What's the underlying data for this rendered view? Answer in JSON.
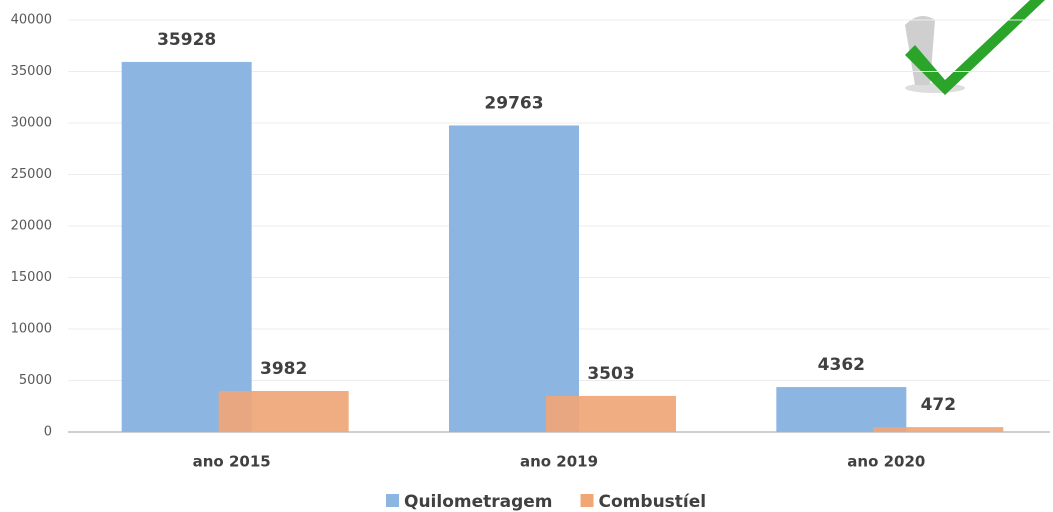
{
  "chart_data": {
    "type": "bar",
    "categories": [
      "ano 2015",
      "ano 2019",
      "ano 2020"
    ],
    "series": [
      {
        "name": "Quilometragem",
        "color": "#8cb6e1",
        "values": [
          35928,
          29763,
          4362
        ]
      },
      {
        "name": "Combustíel",
        "color": "#f0a677",
        "values": [
          3982,
          3503,
          472
        ]
      }
    ],
    "ylim": [
      0,
      40000
    ],
    "yticks": [
      0,
      5000,
      10000,
      15000,
      20000,
      25000,
      30000,
      35000,
      40000
    ],
    "grid": true,
    "legend": "bottom"
  }
}
